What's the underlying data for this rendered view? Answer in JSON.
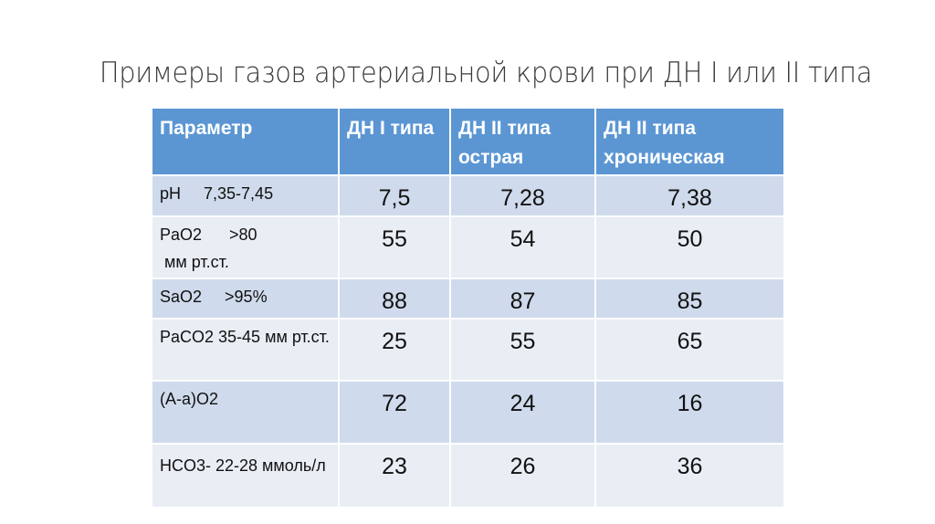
{
  "title": "Примеры газов артериальной крови при ДН I или II типа",
  "table": {
    "headers": [
      "Параметр",
      "ДН I типа",
      "ДН II типа острая",
      "ДН II типа хроническая"
    ],
    "rows": [
      {
        "param": "pH     7,35-7,45",
        "values": [
          "7,5",
          "7,28",
          "7,38"
        ]
      },
      {
        "param": "PaO2      >80\n мм рт.ст.",
        "values": [
          "55",
          "54",
          "50"
        ]
      },
      {
        "param": "SaO2     >95%",
        "values": [
          "88",
          "87",
          "85"
        ]
      },
      {
        "param": "PaCO2   35-45 мм рт.ст.",
        "values": [
          "25",
          "55",
          "65"
        ]
      },
      {
        "param": "(A-a)O2",
        "values": [
          "72",
          "24",
          "16"
        ]
      },
      {
        "param": "HCO3-   22-28 ммоль/л",
        "values": [
          "23",
          "26",
          "36"
        ]
      }
    ]
  },
  "colors": {
    "header": "#5b96d3",
    "row_dark": "#cfdaec",
    "row_light": "#e9edf4"
  }
}
